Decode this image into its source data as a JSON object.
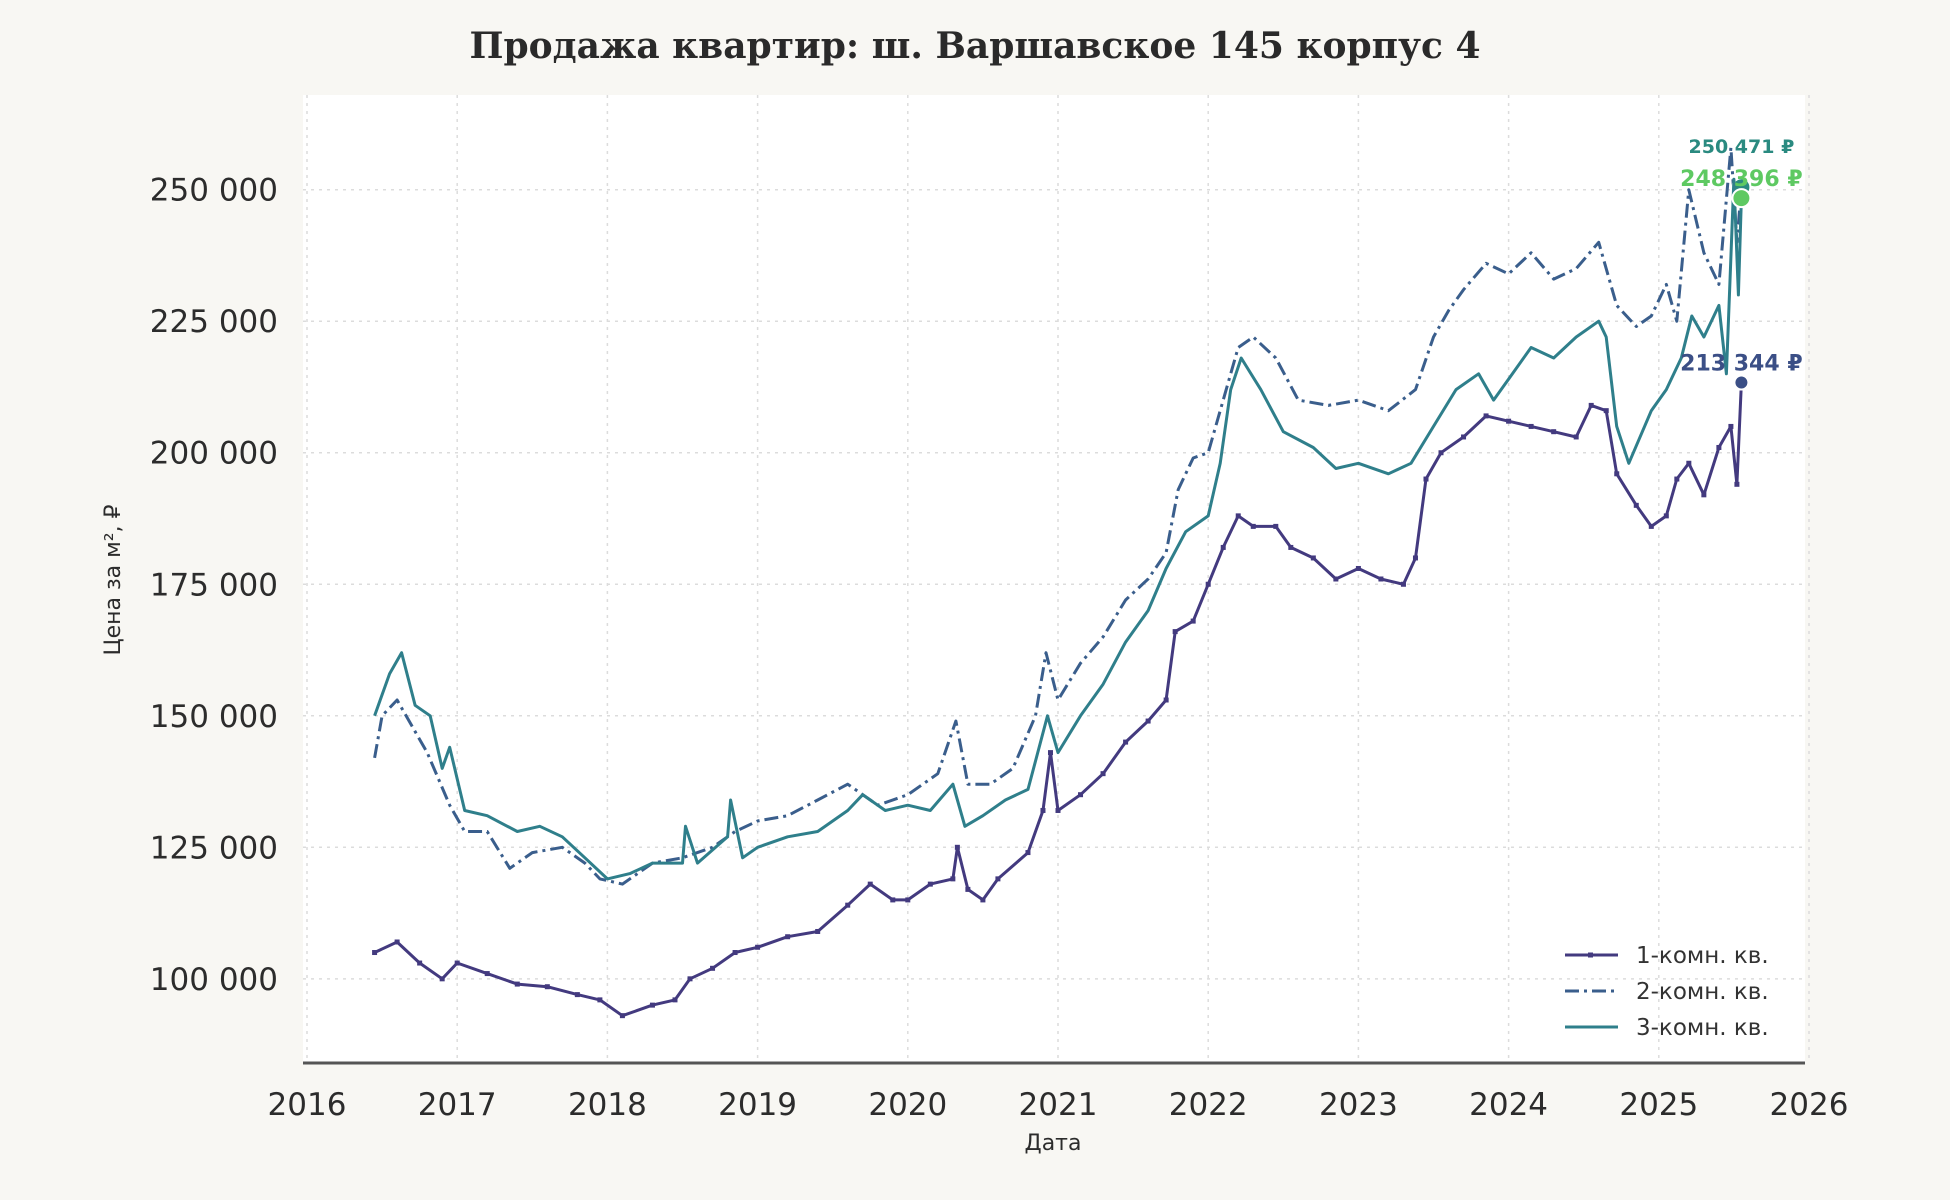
{
  "chart_data": {
    "type": "line",
    "title": "Продажа квартир: ш. Варшавское 145 корпус 4",
    "xlabel": "Дата",
    "ylabel": "Цена за м², ₽",
    "xlim": [
      2016,
      2026
    ],
    "ylim": [
      84000,
      268000
    ],
    "x_ticks": [
      2016,
      2017,
      2018,
      2019,
      2020,
      2021,
      2022,
      2023,
      2024,
      2025,
      2026
    ],
    "x_tick_labels": [
      "2016",
      "2017",
      "2018",
      "2019",
      "2020",
      "2021",
      "2022",
      "2023",
      "2024",
      "2025",
      "2026"
    ],
    "y_ticks": [
      100000,
      125000,
      150000,
      175000,
      200000,
      225000,
      250000
    ],
    "y_tick_labels": [
      "100 000",
      "125 000",
      "150 000",
      "175 000",
      "200 000",
      "225 000",
      "250 000"
    ],
    "grid": true,
    "legend_position": "bottom-right",
    "series": [
      {
        "name": "1-комн. кв.",
        "color": "#433a7f",
        "style": "solid-square-markers",
        "points": [
          [
            2016.45,
            105000
          ],
          [
            2016.6,
            107000
          ],
          [
            2016.75,
            103000
          ],
          [
            2016.9,
            100000
          ],
          [
            2017.0,
            103000
          ],
          [
            2017.2,
            101000
          ],
          [
            2017.4,
            99000
          ],
          [
            2017.6,
            98500
          ],
          [
            2017.8,
            97000
          ],
          [
            2017.95,
            96000
          ],
          [
            2018.1,
            93000
          ],
          [
            2018.3,
            95000
          ],
          [
            2018.45,
            96000
          ],
          [
            2018.55,
            100000
          ],
          [
            2018.7,
            102000
          ],
          [
            2018.85,
            105000
          ],
          [
            2019.0,
            106000
          ],
          [
            2019.2,
            108000
          ],
          [
            2019.4,
            109000
          ],
          [
            2019.6,
            114000
          ],
          [
            2019.75,
            118000
          ],
          [
            2019.9,
            115000
          ],
          [
            2020.0,
            115000
          ],
          [
            2020.15,
            118000
          ],
          [
            2020.3,
            119000
          ],
          [
            2020.33,
            125000
          ],
          [
            2020.4,
            117000
          ],
          [
            2020.5,
            115000
          ],
          [
            2020.6,
            119000
          ],
          [
            2020.8,
            124000
          ],
          [
            2020.9,
            132000
          ],
          [
            2020.95,
            143000
          ],
          [
            2021.0,
            132000
          ],
          [
            2021.15,
            135000
          ],
          [
            2021.3,
            139000
          ],
          [
            2021.45,
            145000
          ],
          [
            2021.6,
            149000
          ],
          [
            2021.72,
            153000
          ],
          [
            2021.78,
            166000
          ],
          [
            2021.9,
            168000
          ],
          [
            2022.0,
            175000
          ],
          [
            2022.1,
            182000
          ],
          [
            2022.2,
            188000
          ],
          [
            2022.3,
            186000
          ],
          [
            2022.45,
            186000
          ],
          [
            2022.55,
            182000
          ],
          [
            2022.7,
            180000
          ],
          [
            2022.85,
            176000
          ],
          [
            2023.0,
            178000
          ],
          [
            2023.15,
            176000
          ],
          [
            2023.3,
            175000
          ],
          [
            2023.38,
            180000
          ],
          [
            2023.45,
            195000
          ],
          [
            2023.55,
            200000
          ],
          [
            2023.7,
            203000
          ],
          [
            2023.85,
            207000
          ],
          [
            2024.0,
            206000
          ],
          [
            2024.15,
            205000
          ],
          [
            2024.3,
            204000
          ],
          [
            2024.45,
            203000
          ],
          [
            2024.55,
            209000
          ],
          [
            2024.65,
            208000
          ],
          [
            2024.72,
            196000
          ],
          [
            2024.85,
            190000
          ],
          [
            2024.95,
            186000
          ],
          [
            2025.05,
            188000
          ],
          [
            2025.12,
            195000
          ],
          [
            2025.2,
            198000
          ],
          [
            2025.3,
            192000
          ],
          [
            2025.4,
            201000
          ],
          [
            2025.48,
            205000
          ],
          [
            2025.52,
            194000
          ],
          [
            2025.55,
            213344
          ]
        ]
      },
      {
        "name": "2-комн. кв.",
        "color": "#3a5e8c",
        "style": "dash-dot",
        "points": [
          [
            2016.45,
            142000
          ],
          [
            2016.5,
            150000
          ],
          [
            2016.6,
            153000
          ],
          [
            2016.7,
            148000
          ],
          [
            2016.8,
            143000
          ],
          [
            2016.95,
            133000
          ],
          [
            2017.05,
            128000
          ],
          [
            2017.2,
            128000
          ],
          [
            2017.35,
            121000
          ],
          [
            2017.5,
            124000
          ],
          [
            2017.7,
            125000
          ],
          [
            2017.85,
            122000
          ],
          [
            2017.95,
            119000
          ],
          [
            2018.1,
            118000
          ],
          [
            2018.3,
            122000
          ],
          [
            2018.5,
            123000
          ],
          [
            2018.7,
            125000
          ],
          [
            2018.85,
            128000
          ],
          [
            2019.0,
            130000
          ],
          [
            2019.2,
            131000
          ],
          [
            2019.4,
            134000
          ],
          [
            2019.6,
            137000
          ],
          [
            2019.8,
            133000
          ],
          [
            2020.0,
            135000
          ],
          [
            2020.2,
            139000
          ],
          [
            2020.32,
            149000
          ],
          [
            2020.4,
            137000
          ],
          [
            2020.55,
            137000
          ],
          [
            2020.7,
            140000
          ],
          [
            2020.85,
            150000
          ],
          [
            2020.92,
            162000
          ],
          [
            2021.0,
            153000
          ],
          [
            2021.15,
            160000
          ],
          [
            2021.3,
            165000
          ],
          [
            2021.45,
            172000
          ],
          [
            2021.6,
            176000
          ],
          [
            2021.72,
            181000
          ],
          [
            2021.8,
            193000
          ],
          [
            2021.9,
            199000
          ],
          [
            2022.0,
            200000
          ],
          [
            2022.1,
            210000
          ],
          [
            2022.2,
            220000
          ],
          [
            2022.3,
            222000
          ],
          [
            2022.45,
            218000
          ],
          [
            2022.6,
            210000
          ],
          [
            2022.8,
            209000
          ],
          [
            2023.0,
            210000
          ],
          [
            2023.2,
            208000
          ],
          [
            2023.38,
            212000
          ],
          [
            2023.5,
            222000
          ],
          [
            2023.6,
            227000
          ],
          [
            2023.7,
            231000
          ],
          [
            2023.85,
            236000
          ],
          [
            2024.0,
            234000
          ],
          [
            2024.15,
            238000
          ],
          [
            2024.3,
            233000
          ],
          [
            2024.45,
            235000
          ],
          [
            2024.6,
            240000
          ],
          [
            2024.72,
            228000
          ],
          [
            2024.85,
            224000
          ],
          [
            2024.95,
            226000
          ],
          [
            2025.05,
            232000
          ],
          [
            2025.12,
            225000
          ],
          [
            2025.2,
            250000
          ],
          [
            2025.3,
            238000
          ],
          [
            2025.4,
            232000
          ],
          [
            2025.48,
            258000
          ],
          [
            2025.52,
            240000
          ],
          [
            2025.55,
            250471
          ]
        ]
      },
      {
        "name": "3-комн. кв.",
        "color": "#2f7f8b",
        "style": "solid",
        "points": [
          [
            2016.45,
            150000
          ],
          [
            2016.55,
            158000
          ],
          [
            2016.63,
            162000
          ],
          [
            2016.72,
            152000
          ],
          [
            2016.82,
            150000
          ],
          [
            2016.9,
            140000
          ],
          [
            2016.95,
            144000
          ],
          [
            2017.05,
            132000
          ],
          [
            2017.2,
            131000
          ],
          [
            2017.4,
            128000
          ],
          [
            2017.55,
            129000
          ],
          [
            2017.7,
            127000
          ],
          [
            2017.85,
            123000
          ],
          [
            2018.0,
            119000
          ],
          [
            2018.15,
            120000
          ],
          [
            2018.3,
            122000
          ],
          [
            2018.5,
            122000
          ],
          [
            2018.52,
            129000
          ],
          [
            2018.6,
            122000
          ],
          [
            2018.8,
            127000
          ],
          [
            2018.82,
            134000
          ],
          [
            2018.9,
            123000
          ],
          [
            2019.0,
            125000
          ],
          [
            2019.2,
            127000
          ],
          [
            2019.4,
            128000
          ],
          [
            2019.6,
            132000
          ],
          [
            2019.7,
            135000
          ],
          [
            2019.85,
            132000
          ],
          [
            2020.0,
            133000
          ],
          [
            2020.15,
            132000
          ],
          [
            2020.3,
            137000
          ],
          [
            2020.38,
            129000
          ],
          [
            2020.5,
            131000
          ],
          [
            2020.65,
            134000
          ],
          [
            2020.8,
            136000
          ],
          [
            2020.93,
            150000
          ],
          [
            2021.0,
            143000
          ],
          [
            2021.15,
            150000
          ],
          [
            2021.3,
            156000
          ],
          [
            2021.45,
            164000
          ],
          [
            2021.6,
            170000
          ],
          [
            2021.72,
            178000
          ],
          [
            2021.85,
            185000
          ],
          [
            2022.0,
            188000
          ],
          [
            2022.08,
            198000
          ],
          [
            2022.15,
            212000
          ],
          [
            2022.22,
            218000
          ],
          [
            2022.35,
            212000
          ],
          [
            2022.5,
            204000
          ],
          [
            2022.7,
            201000
          ],
          [
            2022.85,
            197000
          ],
          [
            2023.0,
            198000
          ],
          [
            2023.2,
            196000
          ],
          [
            2023.35,
            198000
          ],
          [
            2023.5,
            205000
          ],
          [
            2023.65,
            212000
          ],
          [
            2023.8,
            215000
          ],
          [
            2023.9,
            210000
          ],
          [
            2024.0,
            214000
          ],
          [
            2024.15,
            220000
          ],
          [
            2024.3,
            218000
          ],
          [
            2024.45,
            222000
          ],
          [
            2024.6,
            225000
          ],
          [
            2024.65,
            222000
          ],
          [
            2024.72,
            205000
          ],
          [
            2024.8,
            198000
          ],
          [
            2024.95,
            208000
          ],
          [
            2025.05,
            212000
          ],
          [
            2025.15,
            218000
          ],
          [
            2025.22,
            226000
          ],
          [
            2025.3,
            222000
          ],
          [
            2025.4,
            228000
          ],
          [
            2025.45,
            215000
          ],
          [
            2025.5,
            252000
          ],
          [
            2025.53,
            230000
          ],
          [
            2025.55,
            248396
          ]
        ]
      }
    ],
    "end_labels": [
      {
        "series": "2-комн. кв.",
        "text": "250 471 ₽",
        "value": 250471,
        "color": "#2a8a80"
      },
      {
        "series": "3-комн. кв.",
        "text": "248 396 ₽",
        "value": 248396,
        "color": "#5ec962"
      },
      {
        "series": "1-комн. кв.",
        "text": "213 344 ₽",
        "value": 213344,
        "color": "#3b4f86"
      }
    ]
  }
}
